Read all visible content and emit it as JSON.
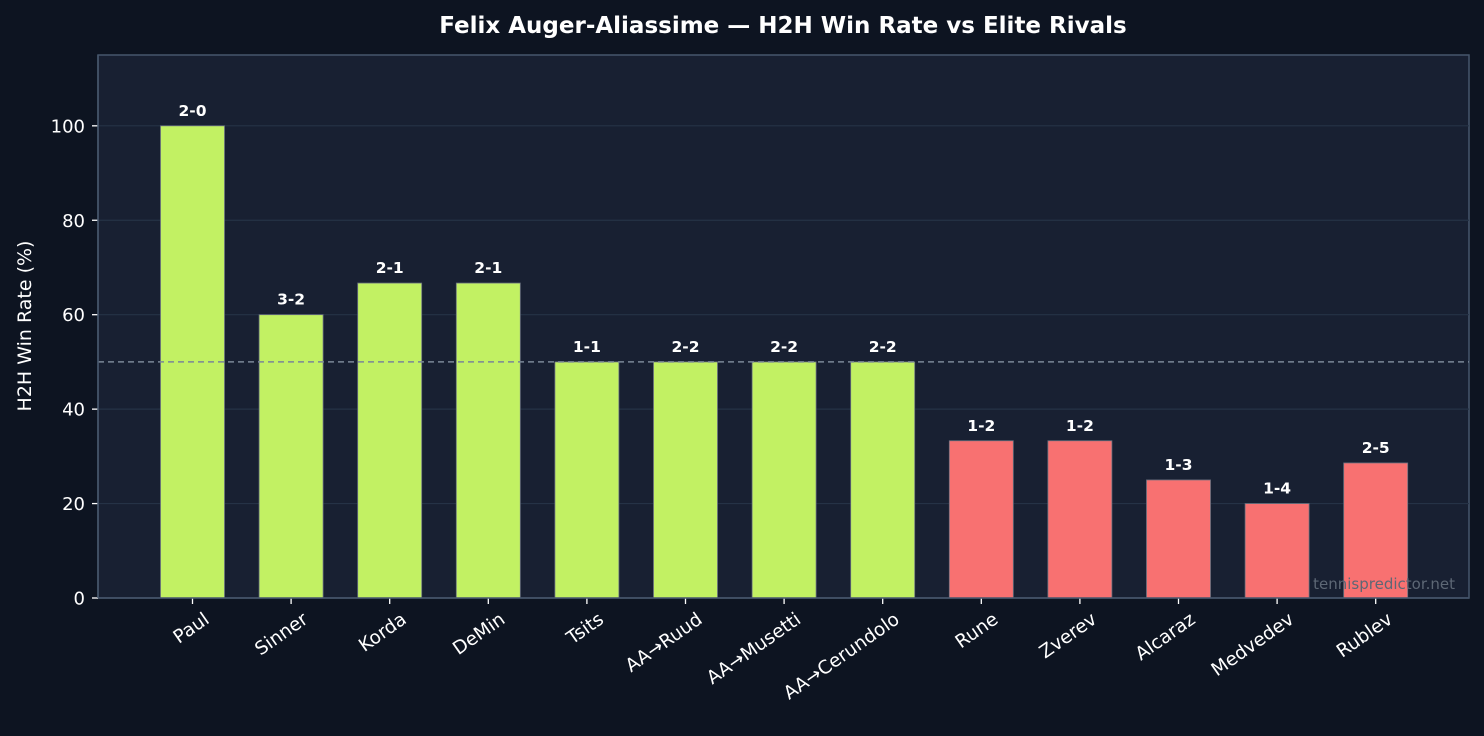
{
  "chart_data": {
    "type": "bar",
    "title": "Felix Auger-Aliassime — H2H Win Rate vs Elite Rivals",
    "xlabel": "",
    "ylabel": "H2H Win Rate (%)",
    "ylim": [
      0,
      115
    ],
    "yticks": [
      0,
      20,
      40,
      60,
      80,
      100
    ],
    "grid": true,
    "reference_line": 50,
    "categories": [
      "Paul",
      "Sinner",
      "Korda",
      "DeMin",
      "Tsits",
      "AA→Ruud",
      "AA→Musetti",
      "AA→Cerundolo",
      "Rune",
      "Zverev",
      "Alcaraz",
      "Medvedev",
      "Rublev"
    ],
    "values": [
      100,
      60,
      66.7,
      66.7,
      50,
      50,
      50,
      50,
      33.3,
      33.3,
      25,
      20,
      28.6
    ],
    "labels": [
      "2-0",
      "3-2",
      "2-1",
      "2-1",
      "1-1",
      "2-2",
      "2-2",
      "2-2",
      "1-2",
      "1-2",
      "1-3",
      "1-4",
      "2-5"
    ],
    "colors": {
      "winning": "#c2f163",
      "losing": "#f87171",
      "background": "#0d1421",
      "plot_background": "#182032",
      "grid": "#253246",
      "axis": "#46566c",
      "reference": "#7a8797",
      "text": "#ffffff",
      "watermark": "#5d6775"
    }
  },
  "watermark": "tennispredictor.net"
}
